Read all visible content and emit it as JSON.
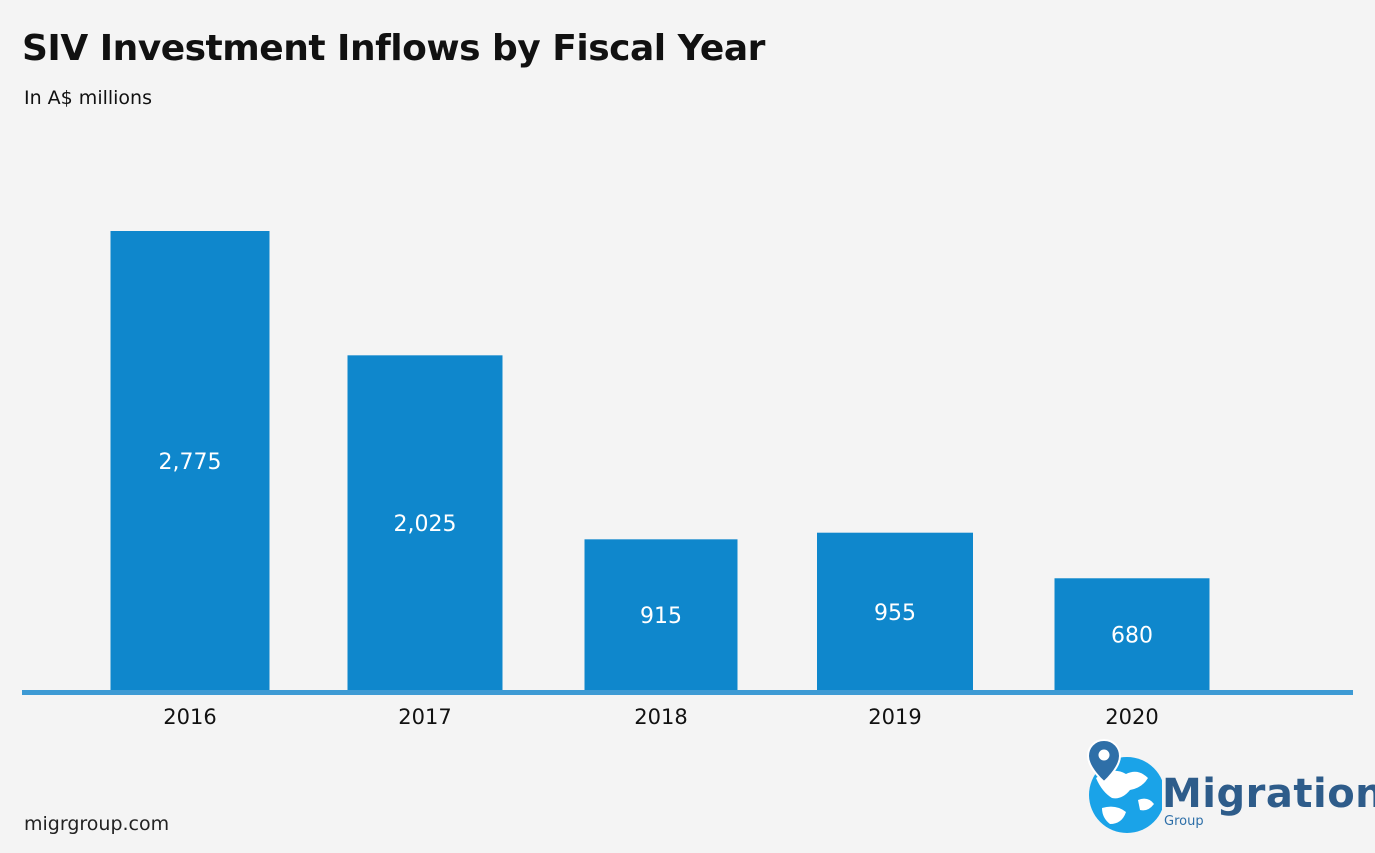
{
  "title": "SIV Investment Inflows by Fiscal Year",
  "subtitle": "In A$ millions",
  "website": "migrgroup.com",
  "logo": {
    "name": "Migration",
    "sub": "Group",
    "colors": {
      "globe": "#1aa3e8",
      "pin": "#2e6fa8",
      "text": "#2e5c8a"
    }
  },
  "colors": {
    "bar": "#0f87cc",
    "axis": "#3d9ad4",
    "background": "#f4f4f4"
  },
  "chart_data": {
    "type": "bar",
    "title": "SIV Investment Inflows by Fiscal Year",
    "subtitle": "In A$ millions",
    "categories": [
      "2016",
      "2017",
      "2018",
      "2019",
      "2020"
    ],
    "values": [
      2775,
      2025,
      915,
      955,
      680
    ],
    "value_labels": [
      "2,775",
      "2,025",
      "915",
      "955",
      "680"
    ],
    "xlabel": "",
    "ylabel": "",
    "ylim": [
      0,
      2775
    ],
    "grid": false,
    "legend": "none"
  }
}
